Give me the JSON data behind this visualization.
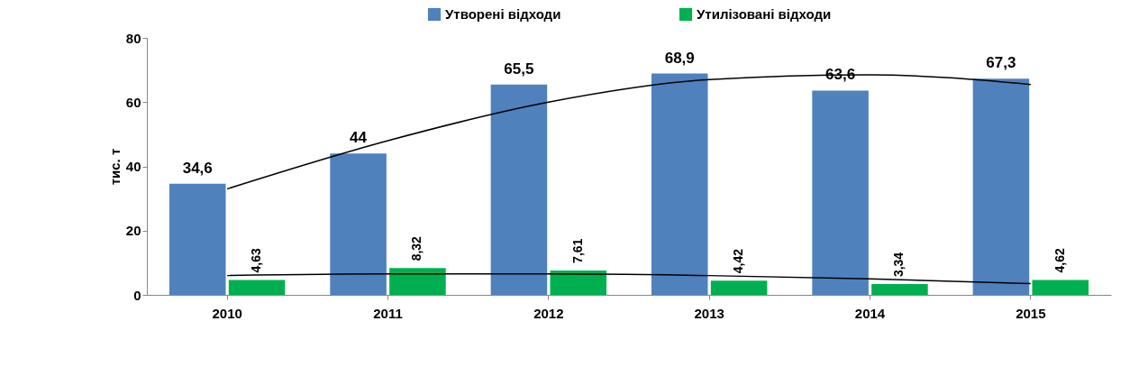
{
  "chart_data": {
    "type": "bar",
    "categories": [
      "2010",
      "2011",
      "2012",
      "2013",
      "2014",
      "2015"
    ],
    "ylabel": "тис. т",
    "ylim": [
      0,
      80
    ],
    "yticks": [
      0,
      20,
      40,
      60,
      80
    ],
    "legend": "top",
    "series": [
      {
        "name": "Утворені відходи",
        "color": "#4f81bd",
        "values": [
          34.6,
          44,
          65.5,
          68.9,
          63.6,
          67.3
        ],
        "value_labels": [
          "34,6",
          "44",
          "65,5",
          "68,9",
          "63,6",
          "67,3"
        ]
      },
      {
        "name": "Утилізовані відходи",
        "color": "#00b050",
        "values": [
          4.63,
          8.32,
          7.61,
          4.42,
          3.34,
          4.62
        ],
        "value_labels": [
          "4,63",
          "8,32",
          "7,61",
          "4,42",
          "3,34",
          "4,62"
        ]
      },
      {
        "type": "line",
        "color": "#000000",
        "values": [
          33,
          48,
          60,
          67,
          68.5,
          65.5
        ]
      },
      {
        "type": "line",
        "color": "#000000",
        "values": [
          6,
          6.5,
          6.5,
          6,
          5,
          3.5
        ]
      }
    ]
  }
}
